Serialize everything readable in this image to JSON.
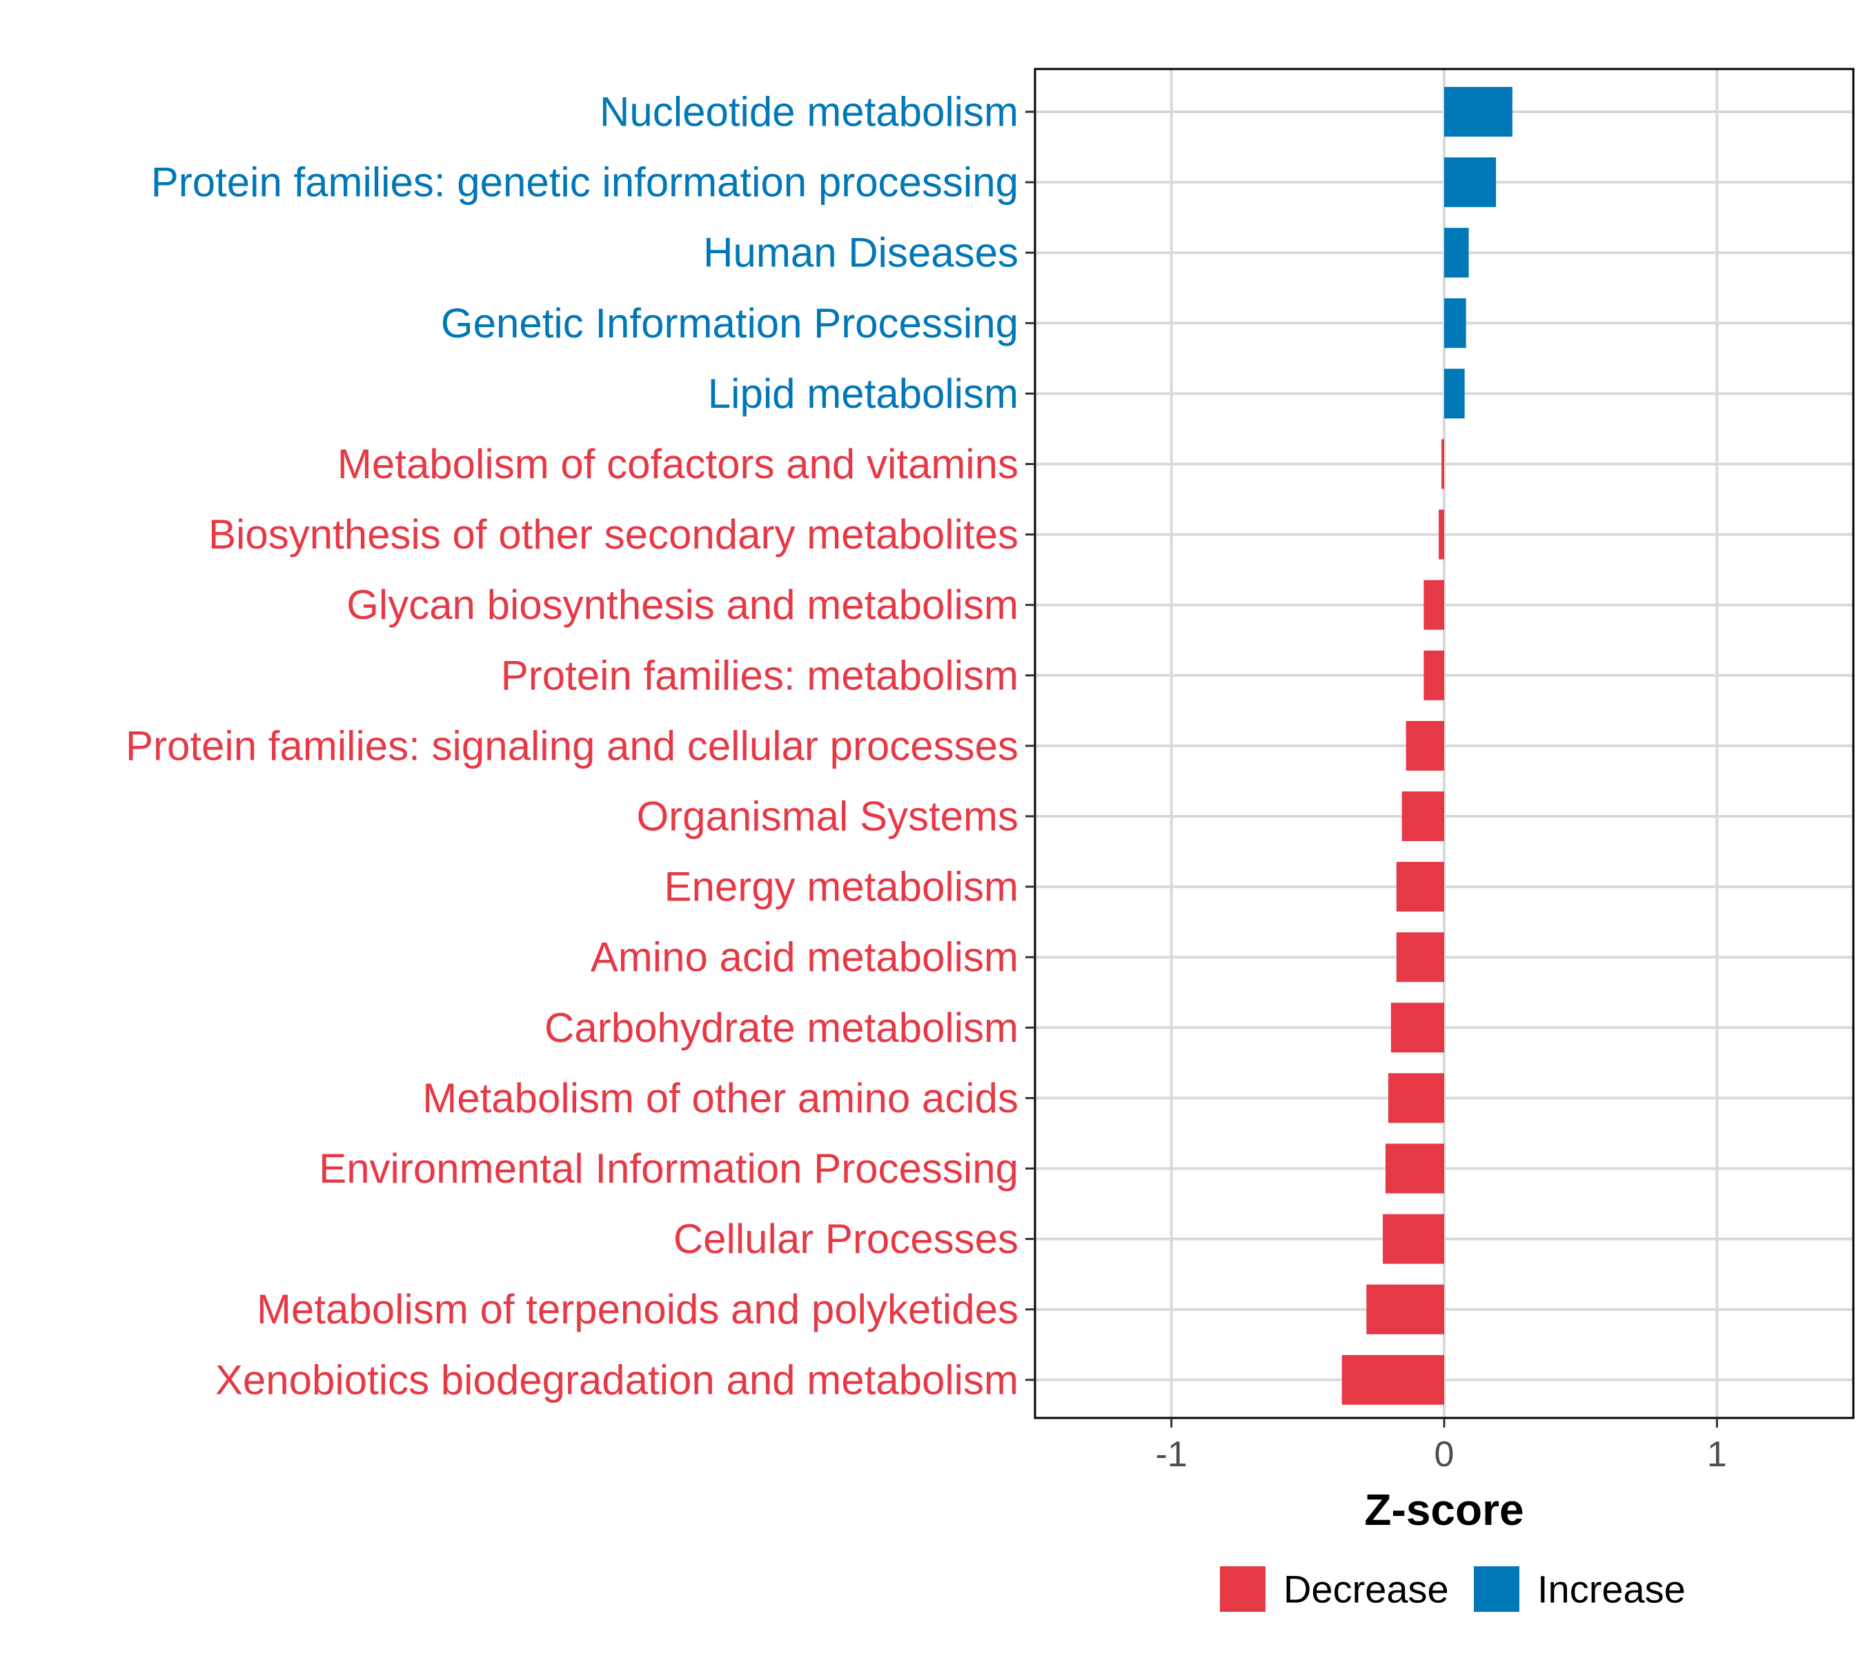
{
  "colors": {
    "decrease": "#E63946",
    "increase": "#0077B6",
    "grid": "#D9D9D9",
    "axis": "#000000"
  },
  "chart_data": {
    "type": "bar",
    "orientation": "horizontal",
    "title": "",
    "xlabel": "Z-score",
    "ylabel": "",
    "xlim": [
      -1.5,
      1.5
    ],
    "xticks": [
      -1,
      0,
      1
    ],
    "xtick_labels": [
      "-1",
      "0",
      "1"
    ],
    "grid": true,
    "legend_position": "bottom",
    "categories": [
      "Nucleotide metabolism",
      "Protein families: genetic information processing",
      "Human Diseases",
      "Genetic Information Processing",
      "Lipid metabolism",
      "Metabolism of cofactors and vitamins",
      "Biosynthesis of other secondary metabolites",
      "Glycan biosynthesis and metabolism",
      "Protein families: metabolism",
      "Protein families: signaling and cellular processes",
      "Organismal Systems",
      "Energy metabolism",
      "Amino acid metabolism",
      "Carbohydrate metabolism",
      "Metabolism of other amino acids",
      "Environmental Information Processing",
      "Cellular Processes",
      "Metabolism of terpenoids and polyketides",
      "Xenobiotics biodegradation and metabolism"
    ],
    "values": [
      0.25,
      0.19,
      0.09,
      0.08,
      0.075,
      -0.01,
      -0.02,
      -0.075,
      -0.075,
      -0.14,
      -0.155,
      -0.175,
      -0.175,
      -0.195,
      -0.205,
      -0.215,
      -0.225,
      -0.285,
      -0.375
    ],
    "groups": [
      "Increase",
      "Increase",
      "Increase",
      "Increase",
      "Increase",
      "Decrease",
      "Decrease",
      "Decrease",
      "Decrease",
      "Decrease",
      "Decrease",
      "Decrease",
      "Decrease",
      "Decrease",
      "Decrease",
      "Decrease",
      "Decrease",
      "Decrease",
      "Decrease"
    ],
    "legend": [
      {
        "label": "Decrease",
        "color_key": "decrease"
      },
      {
        "label": "Increase",
        "color_key": "increase"
      }
    ]
  }
}
